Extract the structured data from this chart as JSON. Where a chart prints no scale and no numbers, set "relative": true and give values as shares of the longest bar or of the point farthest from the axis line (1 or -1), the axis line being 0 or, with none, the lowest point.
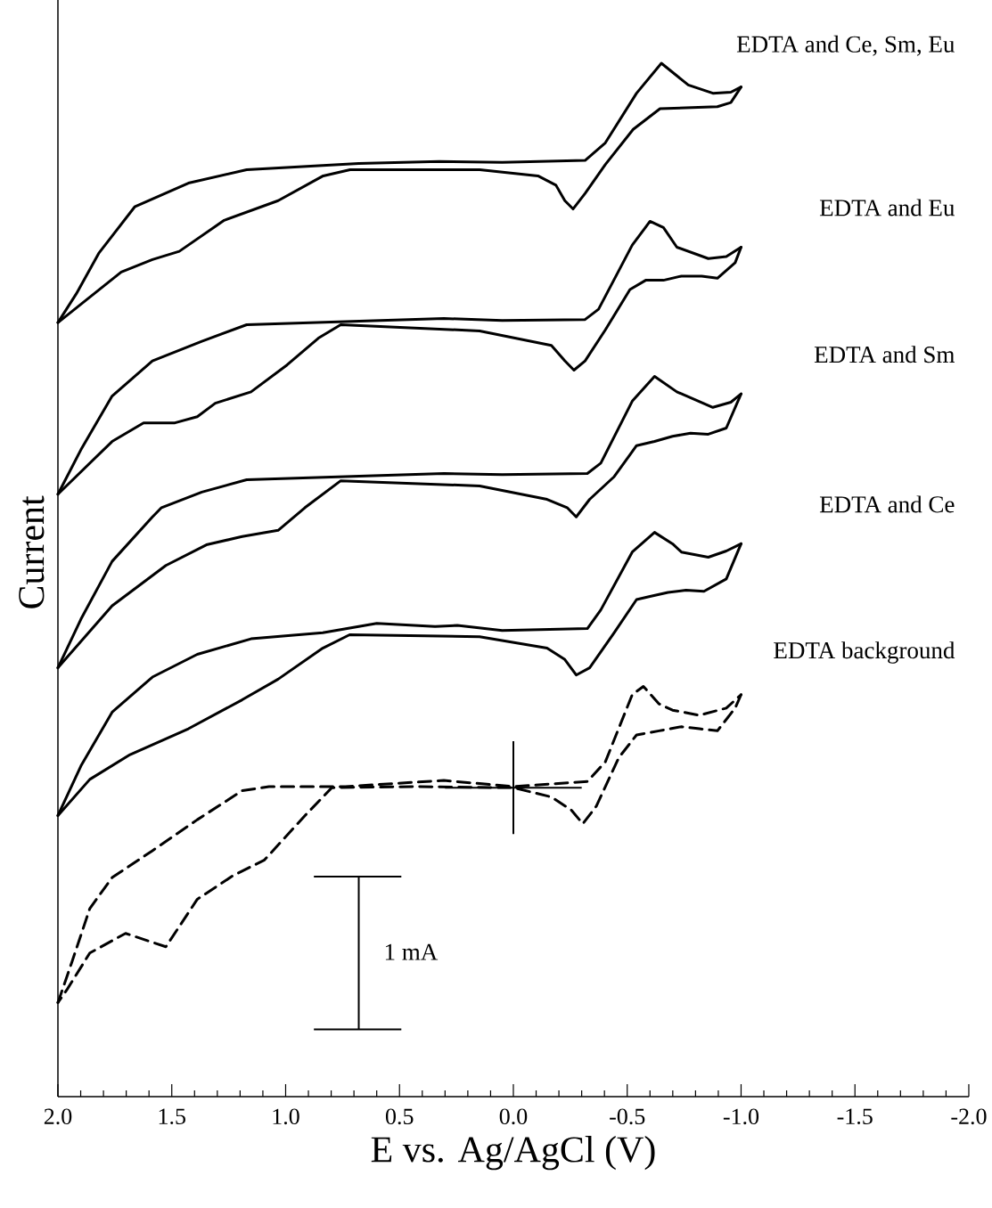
{
  "chart_data": {
    "type": "line",
    "relative": true,
    "xlabel": "E vs. Ag/AgCl (V)",
    "ylabel": "Current",
    "xlim": [
      2,
      -2
    ],
    "xticks": [
      {
        "value": 2,
        "label": "2.0"
      },
      {
        "value": 1.5,
        "label": "1.5"
      },
      {
        "value": 1,
        "label": "1.0"
      },
      {
        "value": 0.5,
        "label": "0.5"
      },
      {
        "value": 0,
        "label": "0.0"
      },
      {
        "value": -0.5,
        "label": "-0.5"
      },
      {
        "value": -1,
        "label": "-1.0"
      },
      {
        "value": -1.5,
        "label": "-1.5"
      },
      {
        "value": -2,
        "label": "-2.0"
      }
    ],
    "grid": false,
    "legend": false,
    "line_style": "solid",
    "annotations": [
      "1 mA"
    ],
    "series": [
      {
        "name": "EDTA and Ce, Sm, Eu",
        "color": "#000000",
        "x": [
          2.0,
          1.919,
          1.821,
          1.663,
          1.427,
          1.171,
          0.679,
          0.325,
          0.049,
          -0.315,
          -0.404,
          -0.541,
          -0.65,
          -0.768,
          -0.876,
          -0.955,
          -1.0
        ],
        "values": [
          0.749,
          0.777,
          0.816,
          0.861,
          0.884,
          0.897,
          0.903,
          0.905,
          0.904,
          0.906,
          0.923,
          0.971,
          1.0,
          0.979,
          0.971,
          0.972,
          0.977
        ]
      },
      {
        "color": "#000000",
        "x": [
          -1.0,
          -0.955,
          -0.896,
          -0.644,
          -0.526,
          -0.404,
          -0.315,
          -0.262,
          -0.226,
          -0.187,
          -0.108,
          0.148,
          0.717,
          0.835,
          1.033,
          1.27,
          1.467,
          1.585,
          1.722,
          2.0
        ],
        "values": [
          0.977,
          0.962,
          0.958,
          0.956,
          0.936,
          0.902,
          0.874,
          0.859,
          0.867,
          0.882,
          0.891,
          0.897,
          0.897,
          0.891,
          0.867,
          0.848,
          0.818,
          0.81,
          0.798,
          0.749
        ]
      },
      {
        "name": "EDTA and Eu",
        "color": "#000000",
        "x": [
          2.0,
          1.899,
          1.762,
          1.585,
          1.368,
          1.171,
          0.738,
          0.305,
          0.049,
          -0.315,
          -0.374,
          -0.522,
          -0.6,
          -0.659,
          -0.718,
          -0.856,
          -0.935,
          -1.0
        ],
        "values": [
          0.583,
          0.626,
          0.678,
          0.712,
          0.731,
          0.747,
          0.75,
          0.753,
          0.751,
          0.752,
          0.762,
          0.824,
          0.847,
          0.841,
          0.822,
          0.811,
          0.813,
          0.822
        ]
      },
      {
        "color": "#000000",
        "x": [
          -1.0,
          -0.974,
          -0.896,
          -0.827,
          -0.738,
          -0.659,
          -0.581,
          -0.512,
          -0.404,
          -0.315,
          -0.266,
          -0.226,
          -0.167,
          0.148,
          0.758,
          0.856,
          0.994,
          1.152,
          1.309,
          1.388,
          1.486,
          1.624,
          1.762,
          2.0
        ],
        "values": [
          0.822,
          0.807,
          0.792,
          0.794,
          0.794,
          0.79,
          0.79,
          0.781,
          0.742,
          0.712,
          0.703,
          0.712,
          0.727,
          0.741,
          0.747,
          0.734,
          0.708,
          0.682,
          0.671,
          0.658,
          0.652,
          0.652,
          0.634,
          0.583
        ]
      },
      {
        "name": "EDTA and Sm",
        "color": "#000000",
        "x": [
          2.0,
          1.899,
          1.762,
          1.585,
          1.545,
          1.368,
          1.171,
          0.738,
          0.305,
          0.049,
          -0.325,
          -0.384,
          -0.522,
          -0.62,
          -0.718,
          -0.876,
          -0.955,
          -1.0
        ],
        "values": [
          0.415,
          0.462,
          0.518,
          0.561,
          0.57,
          0.585,
          0.597,
          0.6,
          0.603,
          0.602,
          0.603,
          0.613,
          0.673,
          0.697,
          0.682,
          0.667,
          0.672,
          0.68
        ]
      },
      {
        "color": "#000000",
        "x": [
          -1.0,
          -0.935,
          -0.856,
          -0.778,
          -0.699,
          -0.62,
          -0.541,
          -0.443,
          -0.335,
          -0.276,
          -0.236,
          -0.148,
          0.148,
          0.758,
          0.915,
          1.033,
          1.191,
          1.348,
          1.526,
          1.762,
          2.0
        ],
        "values": [
          0.68,
          0.647,
          0.641,
          0.642,
          0.639,
          0.634,
          0.63,
          0.6,
          0.578,
          0.561,
          0.57,
          0.578,
          0.591,
          0.596,
          0.57,
          0.548,
          0.542,
          0.534,
          0.514,
          0.475,
          0.415
        ]
      },
      {
        "name": "EDTA and Ce",
        "color": "#000000",
        "x": [
          2.0,
          1.899,
          1.762,
          1.585,
          1.388,
          1.152,
          0.837,
          0.6,
          0.344,
          0.246,
          0.049,
          -0.325,
          -0.384,
          -0.522,
          -0.62,
          -0.699,
          -0.738,
          -0.856,
          -0.935,
          -1.0
        ],
        "values": [
          0.272,
          0.32,
          0.372,
          0.406,
          0.428,
          0.443,
          0.449,
          0.458,
          0.455,
          0.456,
          0.451,
          0.453,
          0.471,
          0.527,
          0.546,
          0.535,
          0.527,
          0.522,
          0.528,
          0.535
        ]
      },
      {
        "color": "#000000",
        "x": [
          -1.0,
          -0.935,
          -0.837,
          -0.758,
          -0.679,
          -0.6,
          -0.541,
          -0.443,
          -0.335,
          -0.276,
          -0.226,
          -0.148,
          0.148,
          0.719,
          0.837,
          1.033,
          1.191,
          1.427,
          1.683,
          1.86,
          2.0
        ],
        "values": [
          0.535,
          0.501,
          0.489,
          0.49,
          0.488,
          0.484,
          0.481,
          0.449,
          0.415,
          0.408,
          0.423,
          0.434,
          0.445,
          0.447,
          0.434,
          0.404,
          0.384,
          0.356,
          0.331,
          0.307,
          0.272
        ]
      },
      {
        "name": "EDTA background",
        "color": "#000000",
        "line_style": "dashed",
        "x": [
          2.0,
          1.939,
          1.86,
          1.762,
          1.585,
          1.388,
          1.191,
          1.073,
          0.738,
          0.305,
          0.0,
          -0.325,
          -0.404,
          -0.522,
          -0.571,
          -0.64,
          -0.699,
          -0.817,
          -0.935,
          -1.0
        ],
        "values": [
          0.091,
          0.13,
          0.182,
          0.212,
          0.238,
          0.268,
          0.296,
          0.3,
          0.3,
          0.306,
          0.3,
          0.305,
          0.324,
          0.389,
          0.397,
          0.38,
          0.374,
          0.369,
          0.376,
          0.389
        ]
      },
      {
        "color": "#000000",
        "line_style": "dashed",
        "x": [
          -1.0,
          -0.974,
          -0.896,
          -0.817,
          -0.738,
          -0.64,
          -0.541,
          -0.463,
          -0.364,
          -0.305,
          -0.256,
          -0.167,
          0.0,
          0.443,
          0.797,
          0.915,
          1.093,
          1.23,
          1.388,
          1.526,
          1.703,
          1.86,
          1.959,
          2.0
        ],
        "values": [
          0.389,
          0.376,
          0.354,
          0.356,
          0.358,
          0.354,
          0.35,
          0.328,
          0.281,
          0.264,
          0.277,
          0.29,
          0.299,
          0.3,
          0.299,
          0.272,
          0.229,
          0.214,
          0.191,
          0.145,
          0.158,
          0.139,
          0.104,
          0.091
        ]
      }
    ]
  }
}
